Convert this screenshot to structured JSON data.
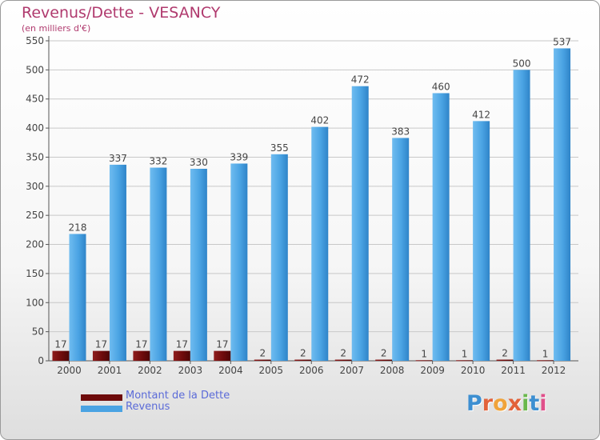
{
  "title": "Revenus/Dette - VESANCY",
  "subtitle": "(en milliers d'€)",
  "brand": {
    "text": "Proxiti",
    "letter_colors": [
      "#3d8fd1",
      "#e2623a",
      "#f0a33a",
      "#e2623a",
      "#6ab84c",
      "#3d8fd1",
      "#e04f8a"
    ]
  },
  "colors": {
    "dette": "#6e0b0b",
    "revenus": "#4aa3e3",
    "axis": "#555555",
    "grid": "#c8c8c8",
    "label": "#444444"
  },
  "chart_data": {
    "type": "bar",
    "title": "Revenus/Dette - VESANCY",
    "subtitle": "(en milliers d'€)",
    "categories": [
      "2000",
      "2001",
      "2002",
      "2003",
      "2004",
      "2005",
      "2006",
      "2007",
      "2008",
      "2009",
      "2010",
      "2011",
      "2012"
    ],
    "series": [
      {
        "name": "Montant de la Dette",
        "values": [
          17,
          17,
          17,
          17,
          17,
          2,
          2,
          2,
          2,
          1,
          1,
          2,
          1
        ]
      },
      {
        "name": "Revenus",
        "values": [
          218,
          337,
          332,
          330,
          339,
          355,
          402,
          472,
          383,
          460,
          412,
          500,
          537
        ]
      }
    ],
    "ylim": [
      0,
      550
    ],
    "yticks": [
      0,
      50,
      100,
      150,
      200,
      250,
      300,
      350,
      400,
      450,
      500,
      550
    ],
    "grid": true,
    "legend": "bottom-left"
  }
}
